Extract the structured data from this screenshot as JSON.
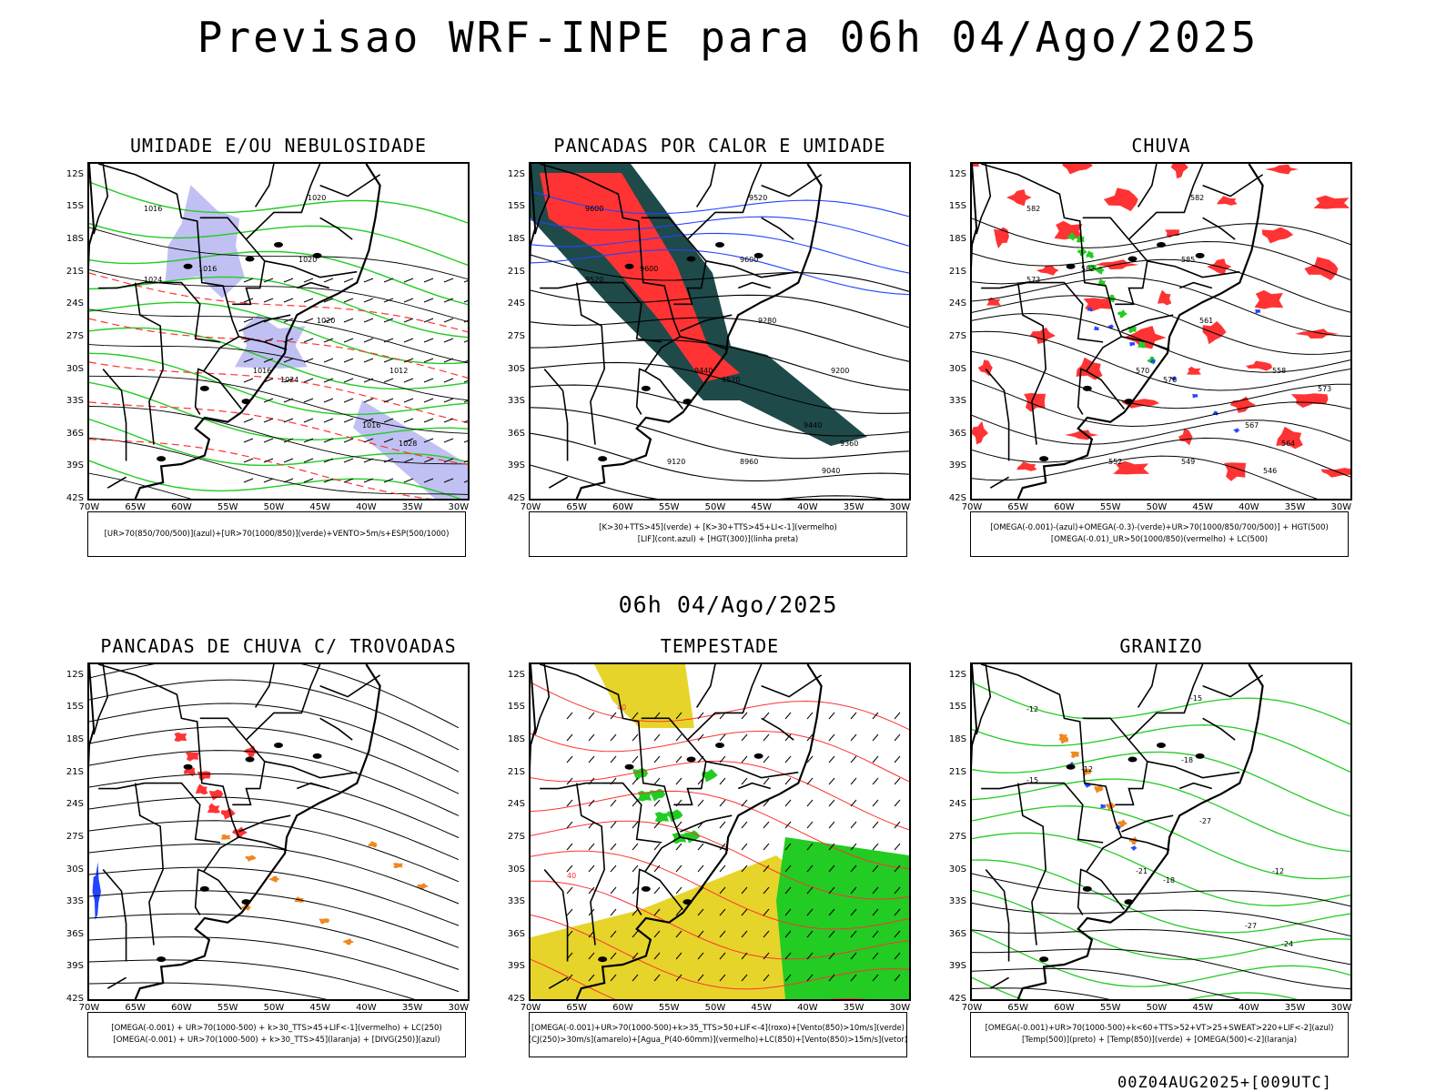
{
  "title": "Previsao WRF-INPE  para 06h 04/Ago/2025",
  "subtitle": "06h 04/Ago/2025",
  "footer": "00Z04AUG2025+[009UTC]",
  "axes": {
    "lat_ticks": [
      "12S",
      "15S",
      "18S",
      "21S",
      "24S",
      "27S",
      "30S",
      "33S",
      "36S",
      "39S",
      "42S"
    ],
    "lon_ticks": [
      "70W",
      "65W",
      "60W",
      "55W",
      "50W",
      "45W",
      "40W",
      "35W",
      "30W"
    ]
  },
  "colors": {
    "green": "#22cc22",
    "red": "#ff3333",
    "blue": "#2244ff",
    "lavender": "#b0b0f0",
    "dark_teal": "#1f4a4a",
    "yellow": "#e6d42a",
    "orange": "#ee8822"
  },
  "panels": [
    {
      "title": "UMIDADE E/OU NEBULOSIDADE",
      "legend": [
        "[UR>70(850/700/500)](azul)+[UR>70(1000/850)](verde)+VENTO>5m/s+ESP(500/1000)"
      ],
      "contour_labels": [
        "1016",
        "1016",
        "1020",
        "1020",
        "1024",
        "1024",
        "1016",
        "1016",
        "1028",
        "1020",
        "1012"
      ]
    },
    {
      "title": "PANCADAS POR CALOR E UMIDADE",
      "legend": [
        "[K>30+TTS>45](verde) + [K>30+TTS>45+LI<-1](vermelho)",
        "[LIF](cont.azul) + [HGT(300)](linha preta)"
      ],
      "contour_labels": [
        "9600",
        "9600",
        "9520",
        "9600",
        "9520",
        "9520",
        "9440",
        "9440",
        "9360",
        "9280",
        "9200",
        "9120",
        "9040",
        "8960"
      ]
    },
    {
      "title": "CHUVA",
      "legend": [
        "[OMEGA(-0.001)-(azul)+OMEGA(-0.3)-(verde)+UR>70(1000/850/700/500)] + HGT(500)",
        "[OMEGA(-0.01)_UR>50(1000/850)(vermelho) + LC(500)"
      ],
      "contour_labels": [
        "582",
        "582",
        "582",
        "585",
        "576",
        "573",
        "570",
        "567",
        "564",
        "561",
        "558",
        "552",
        "546",
        "549",
        "573"
      ]
    },
    {
      "title": "PANCADAS DE CHUVA C/ TROVOADAS",
      "legend": [
        "[OMEGA(-0.001) + UR>70(1000-500) + k>30_TTS>45+LIF<-1](vermelho) + LC(250)",
        "[OMEGA(-0.001) + UR>70(1000-500) + k>30_TTS>45](laranja) + [DIVG(250)](azul)"
      ],
      "contour_labels": []
    },
    {
      "title": "TEMPESTADE",
      "legend": [
        "[OMEGA(-0.001)+UR>70(1000-500)+k>35_TTS>50+LIF<-4](roxo)+[Vento(850)>10m/s](verde)",
        "[CJ(250)>30m/s](amarelo)+[Agua_P(40-60mm)](vermelho)+LC(850)+[Vento(850)>15m/s](vetor)"
      ],
      "contour_labels": [
        "40",
        "40"
      ]
    },
    {
      "title": "GRANIZO",
      "legend": [
        "[OMEGA(-0.001)+UR>70(1000-500)+k<60+TTS>52+VT>25+SWEAT>220+LIF<-2](azul)",
        "[Temp(500)](preto) + [Temp(850)](verde) + [OMEGA(500)<-2](laranja)"
      ],
      "contour_labels": [
        "-12",
        "-12",
        "-15",
        "-18",
        "-18",
        "-15",
        "-21",
        "-27",
        "-24",
        "-27",
        "-12"
      ]
    }
  ]
}
